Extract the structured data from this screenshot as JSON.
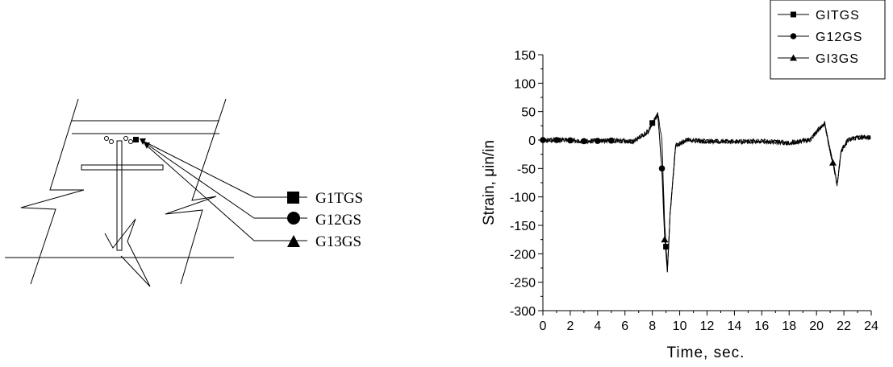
{
  "schematic": {
    "gauges": [
      {
        "label": "G1TGS",
        "marker": "square"
      },
      {
        "label": "G12GS",
        "marker": "circle"
      },
      {
        "label": "G13GS",
        "marker": "triangle"
      }
    ]
  },
  "chart_data": {
    "type": "line",
    "xlabel": "Time, sec.",
    "ylabel": "Strain, μin/in",
    "xlim": [
      0,
      24
    ],
    "ylim": [
      -300,
      150
    ],
    "xticks": [
      0,
      2,
      4,
      6,
      8,
      10,
      12,
      14,
      16,
      18,
      20,
      22,
      24
    ],
    "yticks": [
      150,
      100,
      50,
      0,
      -50,
      -100,
      -150,
      -200,
      -250,
      -300
    ],
    "grid": false,
    "legend_position": "top-right",
    "series": [
      {
        "name": "GITGS",
        "marker": "square",
        "x": [
          0,
          1.5,
          3,
          5,
          6.6,
          7.7,
          8.0,
          8.4,
          8.7,
          8.9,
          9.1,
          9.3,
          9.7,
          10.5,
          12,
          14,
          16,
          18,
          19.5,
          20.2,
          20.6,
          21.0,
          21.3,
          21.5,
          21.8,
          22.3,
          23,
          24
        ],
        "y": [
          0,
          0,
          -2,
          -1,
          -2,
          15,
          30,
          45,
          0,
          -150,
          -225,
          -130,
          -10,
          0,
          -2,
          -3,
          -2,
          -5,
          0,
          20,
          30,
          -20,
          -50,
          -80,
          -20,
          0,
          5,
          5
        ],
        "marker_x": [
          8.0,
          9.0
        ]
      },
      {
        "name": "G12GS",
        "marker": "circle",
        "x": [
          0,
          1.5,
          3,
          5,
          6.6,
          7.7,
          8.0,
          8.4,
          8.7,
          8.9,
          9.1,
          9.3,
          9.7,
          10.5,
          12,
          14,
          16,
          18,
          19.5,
          20.2,
          20.6,
          21.0,
          21.3,
          21.5,
          21.8,
          22.3,
          23,
          24
        ],
        "y": [
          0,
          0,
          -2,
          -1,
          -2,
          15,
          30,
          45,
          -50,
          -150,
          -230,
          -130,
          -10,
          0,
          -2,
          -3,
          -2,
          -5,
          0,
          20,
          30,
          -20,
          -50,
          -80,
          -20,
          0,
          5,
          5
        ],
        "marker_x": [
          0,
          1,
          2,
          3,
          4,
          5,
          8.7
        ]
      },
      {
        "name": "GI3GS",
        "marker": "triangle",
        "x": [
          0,
          1.5,
          3,
          5,
          6.6,
          7.7,
          8.0,
          8.4,
          8.7,
          8.9,
          9.1,
          9.3,
          9.7,
          10.5,
          12,
          14,
          16,
          18,
          19.5,
          20.2,
          20.6,
          21.0,
          21.3,
          21.5,
          21.8,
          22.3,
          23,
          24
        ],
        "y": [
          0,
          0,
          -2,
          -1,
          -2,
          15,
          30,
          45,
          -50,
          -175,
          -235,
          -130,
          -10,
          0,
          -2,
          -3,
          -2,
          -5,
          0,
          20,
          30,
          -20,
          -50,
          -80,
          -20,
          0,
          5,
          5
        ],
        "marker_x": [
          8.9,
          21.2
        ]
      }
    ]
  }
}
